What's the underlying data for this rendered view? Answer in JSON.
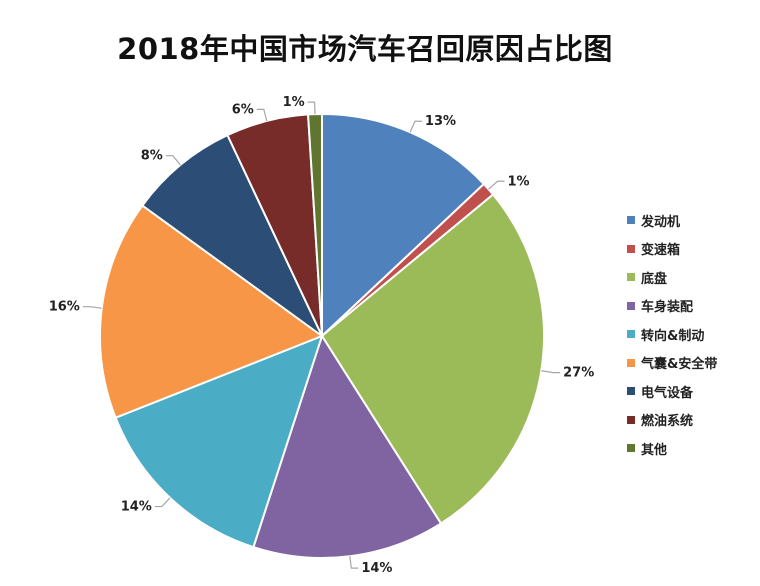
{
  "chart_data": {
    "type": "pie",
    "title": "2018年中国市场汽车召回原因占比图",
    "start_angle_deg": 0,
    "direction": "clockwise",
    "legend_position": "right",
    "slices": [
      {
        "name": "发动机",
        "value": 13,
        "label": "13%",
        "color": "#4F81BD"
      },
      {
        "name": "变速箱",
        "value": 1,
        "label": "1%",
        "color": "#C0504D"
      },
      {
        "name": "底盘",
        "value": 27,
        "label": "27%",
        "color": "#9BBB59"
      },
      {
        "name": "车身装配",
        "value": 14,
        "label": "14%",
        "color": "#8064A2"
      },
      {
        "name": "转向&制动",
        "value": 14,
        "label": "14%",
        "color": "#4BACC6"
      },
      {
        "name": "气囊&安全带",
        "value": 16,
        "label": "16%",
        "color": "#F79646"
      },
      {
        "name": "电气设备",
        "value": 8,
        "label": "8%",
        "color": "#2C4D75"
      },
      {
        "name": "燃油系统",
        "value": 6,
        "label": "6%",
        "color": "#772C2A"
      },
      {
        "name": "其他",
        "value": 1,
        "label": "1%",
        "color": "#5F7530"
      }
    ]
  }
}
